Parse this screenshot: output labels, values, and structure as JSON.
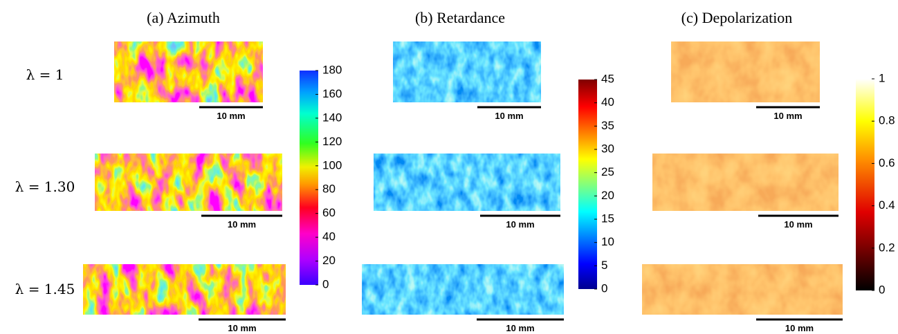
{
  "figure": {
    "panels": [
      {
        "title": "(a) Azimuth",
        "colorbar_ticks": [
          0,
          20,
          40,
          60,
          80,
          100,
          120,
          140,
          160,
          180
        ]
      },
      {
        "title": "(b) Retardance",
        "colorbar_ticks": [
          0,
          5,
          10,
          15,
          20,
          25,
          30,
          35,
          40,
          45
        ]
      },
      {
        "title": "(c) Depolarization",
        "colorbar_ticks": [
          0,
          0.2,
          0.4,
          0.6,
          0.8,
          1
        ]
      }
    ],
    "rows": [
      "λ = 1",
      "λ = 1.30",
      "λ = 1.45"
    ],
    "scale_bar": "10 mm"
  }
}
